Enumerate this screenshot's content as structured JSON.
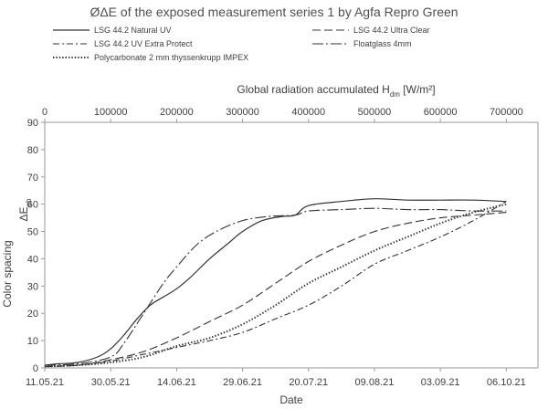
{
  "chart_data": {
    "type": "line",
    "title": "ØΔE of the exposed measurement series 1 by Agfa Repro Green",
    "xlabel": "Date",
    "ylabel": "Color spacing",
    "ylabel_symbol": "ΔE",
    "ylabel_symbol_sub": "ab",
    "x2label": "Global radiation accumulated",
    "x2label_symbol": "H",
    "x2label_symbol_sub": "dm",
    "x2label_unit": "[W/m²]",
    "ylim": [
      0,
      90
    ],
    "yticks": [
      "0",
      "10",
      "20",
      "30",
      "40",
      "50",
      "60",
      "70",
      "80",
      "90"
    ],
    "x2lim": [
      0,
      700000
    ],
    "x2ticks": [
      "0",
      "100000",
      "200000",
      "300000",
      "400000",
      "500000",
      "600000",
      "700000"
    ],
    "xtick_labels": [
      "11.05.21",
      "30.05.21",
      "14.06.21",
      "29.06.21",
      "20.07.21",
      "09.08.21",
      "03.09.21",
      "06.10.21"
    ],
    "grid": false,
    "legend_position": "top",
    "series": [
      {
        "name": "LSG 44.2 Natural UV",
        "style": "solid",
        "x": [
          0,
          20000,
          50000,
          80000,
          100000,
          120000,
          140000,
          160000,
          180000,
          200000,
          220000,
          250000,
          280000,
          300000,
          330000,
          360000,
          380000,
          400000,
          450000,
          500000,
          550000,
          600000,
          650000,
          700000
        ],
        "y": [
          1,
          1.5,
          2,
          4,
          7,
          12,
          18,
          23,
          26,
          29,
          33,
          40,
          46,
          50,
          54,
          55.5,
          56,
          59.5,
          61,
          62,
          61.5,
          61.5,
          61.5,
          61
        ]
      },
      {
        "name": "LSG 44.2 Ultra Clear",
        "style": "dashed",
        "x": [
          0,
          50000,
          100000,
          150000,
          200000,
          250000,
          300000,
          350000,
          400000,
          450000,
          500000,
          550000,
          600000,
          650000,
          700000
        ],
        "y": [
          0.5,
          1,
          3,
          6,
          11,
          17,
          23,
          31,
          39,
          45,
          50,
          53,
          55,
          56,
          57
        ]
      },
      {
        "name": "LSG 44.2 UV Extra Protect",
        "style": "dash-dot",
        "x": [
          0,
          50000,
          100000,
          150000,
          200000,
          250000,
          300000,
          350000,
          400000,
          450000,
          500000,
          550000,
          600000,
          650000,
          700000
        ],
        "y": [
          0.5,
          1,
          2.5,
          5,
          7.5,
          10,
          13,
          18,
          23,
          30,
          38,
          43,
          48,
          54,
          61
        ]
      },
      {
        "name": "Floatglass 4mm",
        "style": "long-dash-dot",
        "x": [
          0,
          50000,
          100000,
          120000,
          150000,
          180000,
          200000,
          230000,
          260000,
          300000,
          340000,
          380000,
          400000,
          450000,
          500000,
          550000,
          600000,
          650000,
          700000
        ],
        "y": [
          1,
          1.5,
          4,
          9,
          20,
          31,
          37,
          45,
          50,
          54,
          55.5,
          56,
          57.5,
          58,
          58.5,
          58,
          58,
          57.5,
          57.5
        ]
      },
      {
        "name": "Polycarbonate 2 mm thyssenkrupp IMPEX",
        "style": "dotted",
        "x": [
          0,
          50000,
          100000,
          150000,
          200000,
          250000,
          300000,
          350000,
          400000,
          450000,
          500000,
          550000,
          600000,
          650000,
          700000
        ],
        "y": [
          0.5,
          1,
          2,
          4,
          8,
          11,
          16,
          23,
          31,
          37,
          43,
          48,
          53,
          57,
          60
        ]
      }
    ]
  }
}
